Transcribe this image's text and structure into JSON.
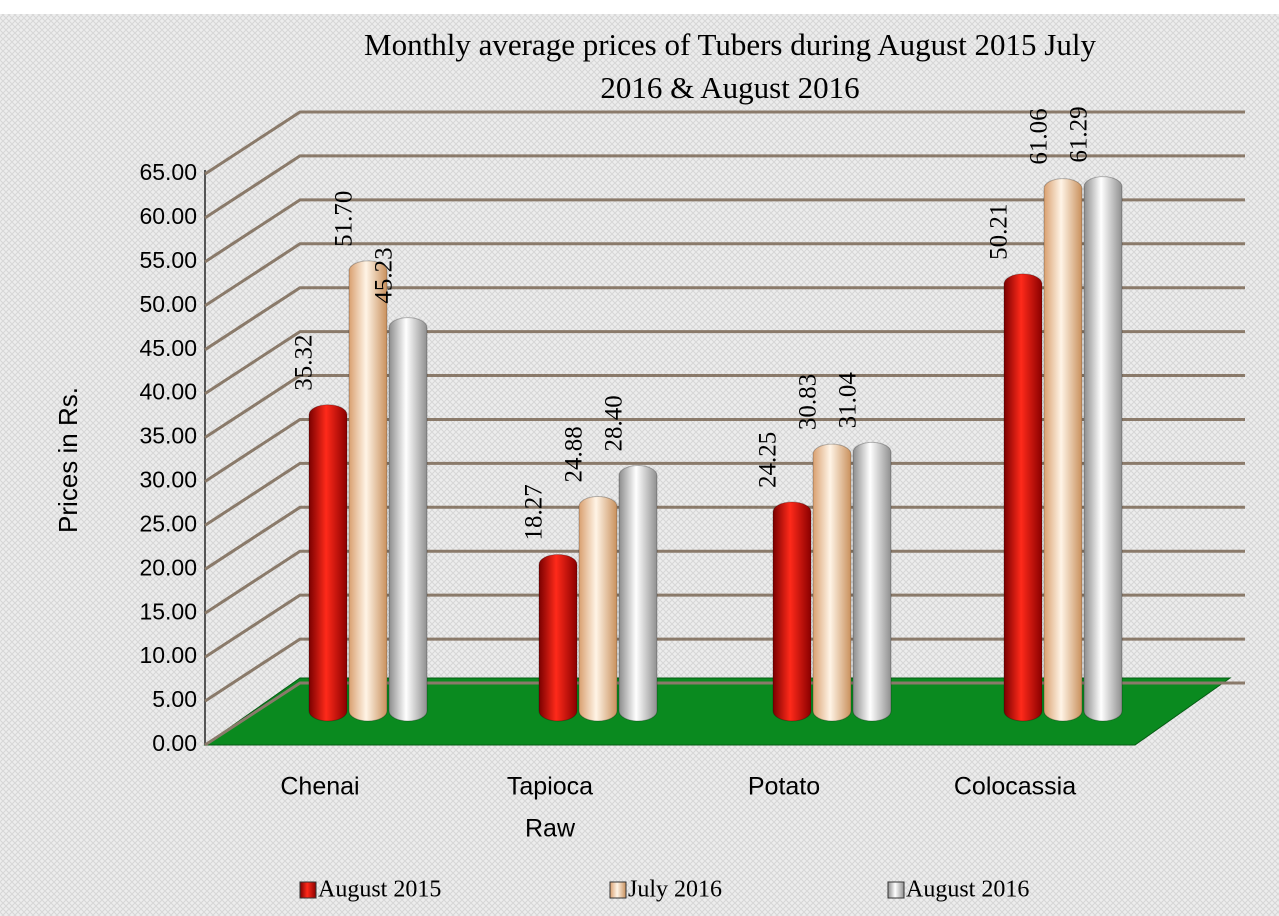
{
  "chart_data": {
    "type": "bar",
    "title": "Monthly  average prices of Tubers during  August 2015  July 2016 & August 2016",
    "ylabel": "Prices in Rs.",
    "categories": [
      [
        "Chenai"
      ],
      [
        "Tapioca",
        "Raw"
      ],
      [
        "Potato"
      ],
      [
        "Colocassia"
      ]
    ],
    "series": [
      {
        "name": "August  2015",
        "color": "#d40d06",
        "values": [
          35.32,
          18.27,
          24.25,
          50.21
        ],
        "value_labels": [
          "35.32",
          "18.27",
          "24.25",
          "50.21"
        ]
      },
      {
        "name": "July  2016",
        "color": "#f6cfa6",
        "values": [
          51.7,
          24.88,
          30.83,
          61.06
        ],
        "value_labels": [
          "51.70",
          "24.88",
          "30.83",
          "61.06"
        ]
      },
      {
        "name": "August  2016",
        "color": "#d9d9d9",
        "values": [
          45.23,
          28.4,
          31.04,
          61.29
        ],
        "value_labels": [
          "45.23",
          "28.40",
          "31.04",
          "61.29"
        ]
      }
    ],
    "ylim": [
      0,
      65
    ],
    "yticks": [
      {
        "value": 0,
        "label": "0.00"
      },
      {
        "value": 5,
        "label": "5.00"
      },
      {
        "value": 10,
        "label": "10.00"
      },
      {
        "value": 15,
        "label": "15.00"
      },
      {
        "value": 20,
        "label": "20.00"
      },
      {
        "value": 25,
        "label": "25.00"
      },
      {
        "value": 30,
        "label": "30.00"
      },
      {
        "value": 35,
        "label": "35.00"
      },
      {
        "value": 40,
        "label": "40.00"
      },
      {
        "value": 45,
        "label": "45.00"
      },
      {
        "value": 50,
        "label": "50.00"
      },
      {
        "value": 55,
        "label": "55.00"
      },
      {
        "value": 60,
        "label": "60.00"
      },
      {
        "value": 65,
        "label": "65.00"
      }
    ],
    "grid": true,
    "legend": "bottom"
  }
}
